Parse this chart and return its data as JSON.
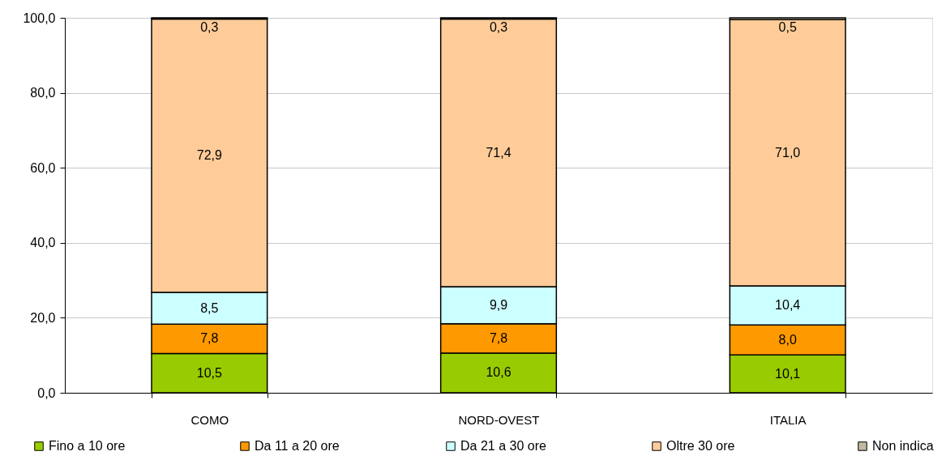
{
  "chart_data": {
    "type": "bar",
    "stacked": true,
    "categories": [
      "COMO",
      "NORD-OVEST",
      "ITALIA"
    ],
    "series": [
      {
        "name": "Fino a 10 ore",
        "color": "#99cc00",
        "values": [
          10.5,
          10.6,
          10.1
        ],
        "value_labels": [
          "10,5",
          "10,6",
          "10,1"
        ]
      },
      {
        "name": "Da 11 a 20 ore",
        "color": "#ff9900",
        "values": [
          7.8,
          7.8,
          8.0
        ],
        "value_labels": [
          "7,8",
          "7,8",
          "8,0"
        ]
      },
      {
        "name": "Da 21 a 30 ore",
        "color": "#ccffff",
        "values": [
          8.5,
          9.9,
          10.4
        ],
        "value_labels": [
          "8,5",
          "9,9",
          "10,4"
        ]
      },
      {
        "name": "Oltre 30 ore",
        "color": "#ffcc99",
        "values": [
          72.9,
          71.4,
          71.0
        ],
        "value_labels": [
          "72,9",
          "71,4",
          "71,0"
        ]
      },
      {
        "name": "Non indica",
        "color": "#c0b8a0",
        "values": [
          0.3,
          0.3,
          0.5
        ],
        "value_labels": [
          "0,3",
          "0,3",
          "0,5"
        ]
      }
    ],
    "ylim": [
      0,
      100
    ],
    "yticks": [
      {
        "value": 0,
        "label": "0,0"
      },
      {
        "value": 20,
        "label": "20,0"
      },
      {
        "value": 40,
        "label": "40,0"
      },
      {
        "value": 60,
        "label": "60,0"
      },
      {
        "value": 80,
        "label": "80,0"
      },
      {
        "value": 100,
        "label": "100,0"
      }
    ],
    "grid": "y",
    "legend": "bottom"
  }
}
